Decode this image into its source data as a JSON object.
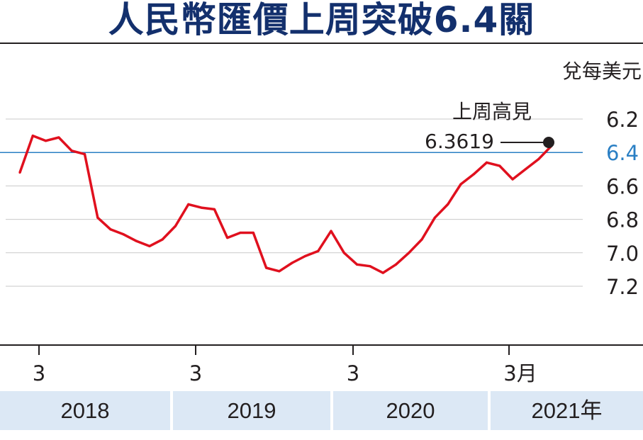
{
  "title": "人民幣匯價上周突破6.4關",
  "chart_data": {
    "type": "line",
    "title": "人民幣匯價上周突破6.4關",
    "unit_label": "兌每美元",
    "y_ticks": [
      "6.2",
      "6.4",
      "6.6",
      "6.8",
      "7.0",
      "7.2"
    ],
    "ylim": [
      6.1,
      7.3
    ],
    "y_inverted": true,
    "x_ticks": [
      "3",
      "3",
      "3",
      "3月"
    ],
    "years": [
      "2018",
      "2019",
      "2020",
      "2021年"
    ],
    "highlight_value": 6.4,
    "annotation": {
      "label": "上周高見",
      "value": "6.3619"
    },
    "series": [
      {
        "color": "#e0101e",
        "x": [
          "2018-01",
          "2018-02",
          "2018-03",
          "2018-04",
          "2018-05",
          "2018-06",
          "2018-07",
          "2018-08",
          "2018-09",
          "2018-10",
          "2018-11",
          "2018-12",
          "2019-01",
          "2019-02",
          "2019-03",
          "2019-04",
          "2019-05",
          "2019-06",
          "2019-07",
          "2019-08",
          "2019-09",
          "2019-10",
          "2019-11",
          "2019-12",
          "2020-01",
          "2020-02",
          "2020-03",
          "2020-04",
          "2020-05",
          "2020-06",
          "2020-07",
          "2020-08",
          "2020-09",
          "2020-10",
          "2020-11",
          "2020-12",
          "2021-01",
          "2021-02",
          "2021-03",
          "2021-04",
          "2021-05",
          "2021-06"
        ],
        "values": [
          6.52,
          6.3,
          6.33,
          6.31,
          6.39,
          6.41,
          6.79,
          6.86,
          6.89,
          6.93,
          6.96,
          6.92,
          6.84,
          6.71,
          6.73,
          6.74,
          6.91,
          6.88,
          6.88,
          7.09,
          7.11,
          7.06,
          7.02,
          6.99,
          6.87,
          7.0,
          7.07,
          7.08,
          7.12,
          7.07,
          7.0,
          6.92,
          6.79,
          6.71,
          6.59,
          6.53,
          6.46,
          6.48,
          6.56,
          6.5,
          6.44,
          6.36
        ]
      }
    ]
  }
}
